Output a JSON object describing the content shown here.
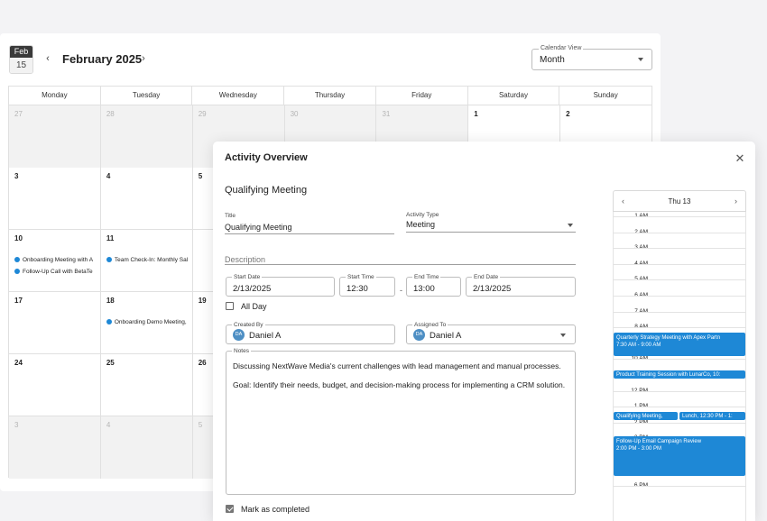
{
  "calendar": {
    "badge_month": "Feb",
    "badge_day": "15",
    "month_title": "February 2025",
    "prev_icon": "‹",
    "next_icon": "›",
    "view_label": "Calendar View",
    "view_value": "Month",
    "weekdays": [
      "Monday",
      "Tuesday",
      "Wednesday",
      "Thursday",
      "Friday",
      "Saturday",
      "Sunday"
    ],
    "weeks": [
      {
        "days": [
          {
            "n": "27",
            "m": true
          },
          {
            "n": "28",
            "m": true
          },
          {
            "n": "29",
            "m": true
          },
          {
            "n": "30",
            "m": true
          },
          {
            "n": "31",
            "m": true
          },
          {
            "n": "1"
          },
          {
            "n": "2"
          }
        ]
      },
      {
        "days": [
          {
            "n": "3"
          },
          {
            "n": "4"
          },
          {
            "n": "5"
          },
          {
            "n": ""
          },
          {
            "n": ""
          },
          {
            "n": ""
          },
          {
            "n": ""
          }
        ]
      },
      {
        "days": [
          {
            "n": "10"
          },
          {
            "n": "11"
          },
          {
            "n": ""
          },
          {
            "n": ""
          },
          {
            "n": ""
          },
          {
            "n": ""
          },
          {
            "n": ""
          }
        ]
      },
      {
        "days": [
          {
            "n": "17"
          },
          {
            "n": "18"
          },
          {
            "n": "19"
          },
          {
            "n": ""
          },
          {
            "n": ""
          },
          {
            "n": ""
          },
          {
            "n": ""
          }
        ]
      },
      {
        "days": [
          {
            "n": "24"
          },
          {
            "n": "25"
          },
          {
            "n": "26"
          },
          {
            "n": ""
          },
          {
            "n": ""
          },
          {
            "n": ""
          },
          {
            "n": ""
          }
        ]
      },
      {
        "days": [
          {
            "n": "3",
            "m": true
          },
          {
            "n": "4",
            "m": true
          },
          {
            "n": "5",
            "m": true
          },
          {
            "n": "",
            "m": true
          },
          {
            "n": "",
            "m": true
          },
          {
            "n": "",
            "m": true
          },
          {
            "n": "",
            "m": true
          }
        ]
      }
    ],
    "events": {
      "mon10_a": "Onboarding Meeting with A",
      "mon10_b": "Follow-Up Call with BetaTe",
      "tue11": "Team Check-In: Monthly Sal",
      "tue18": "Onboarding Demo Meeting,"
    }
  },
  "dialog": {
    "title": "Activity Overview",
    "subtitle": "Qualifying Meeting",
    "close_icon": "✕",
    "title_field": {
      "label": "Title",
      "value": "Qualifying Meeting"
    },
    "activity_type": {
      "label": "Activity Type",
      "value": "Meeting"
    },
    "description": {
      "placeholder": "Description"
    },
    "start_date": {
      "label": "Start Date",
      "value": "2/13/2025"
    },
    "start_time": {
      "label": "Start Time",
      "value": "12:30"
    },
    "end_time": {
      "label": "End Time",
      "value": "13:00"
    },
    "end_date": {
      "label": "End Date",
      "value": "2/13/2025"
    },
    "time_sep": "-",
    "all_day": "All Day",
    "created_by": {
      "label": "Created By",
      "initials": "DA",
      "value": "Daniel A"
    },
    "assigned_to": {
      "label": "Assigned To",
      "initials": "DA",
      "value": "Daniel A"
    },
    "notes": {
      "label": "Notes",
      "p1": "Discussing NextWave Media's current challenges with lead management and manual processes.",
      "p2": "Goal: Identify their needs, budget, and decision-making process for implementing a CRM solution."
    },
    "mark_completed": "Mark as completed"
  },
  "schedule": {
    "day_title": "Thu 13",
    "prev_icon": "‹",
    "next_icon": "›",
    "hours": [
      "1 AM",
      "2 AM",
      "3 AM",
      "4 AM",
      "5 AM",
      "6 AM",
      "7 AM",
      "8 AM",
      "9 AM",
      "10 AM",
      "11 AM",
      "12 PM",
      "1 PM",
      "2 PM",
      "3 PM",
      "4 PM",
      "5 PM",
      "6 PM"
    ],
    "events": {
      "e1_title": "Quarterly Strategy Meeting with Apex Partn",
      "e1_time": "7:30 AM - 9:00 AM",
      "e2_title": "Product Training Session with LunarCo, 10:",
      "e3_title": "Qualifying Meeting,",
      "e4_title": "Lunch, 12:30 PM - 1:",
      "e5_title": "Follow-Up Email Campaign Review",
      "e5_time": "2:00 PM - 3:00 PM"
    },
    "accent": "#1e88d6"
  }
}
